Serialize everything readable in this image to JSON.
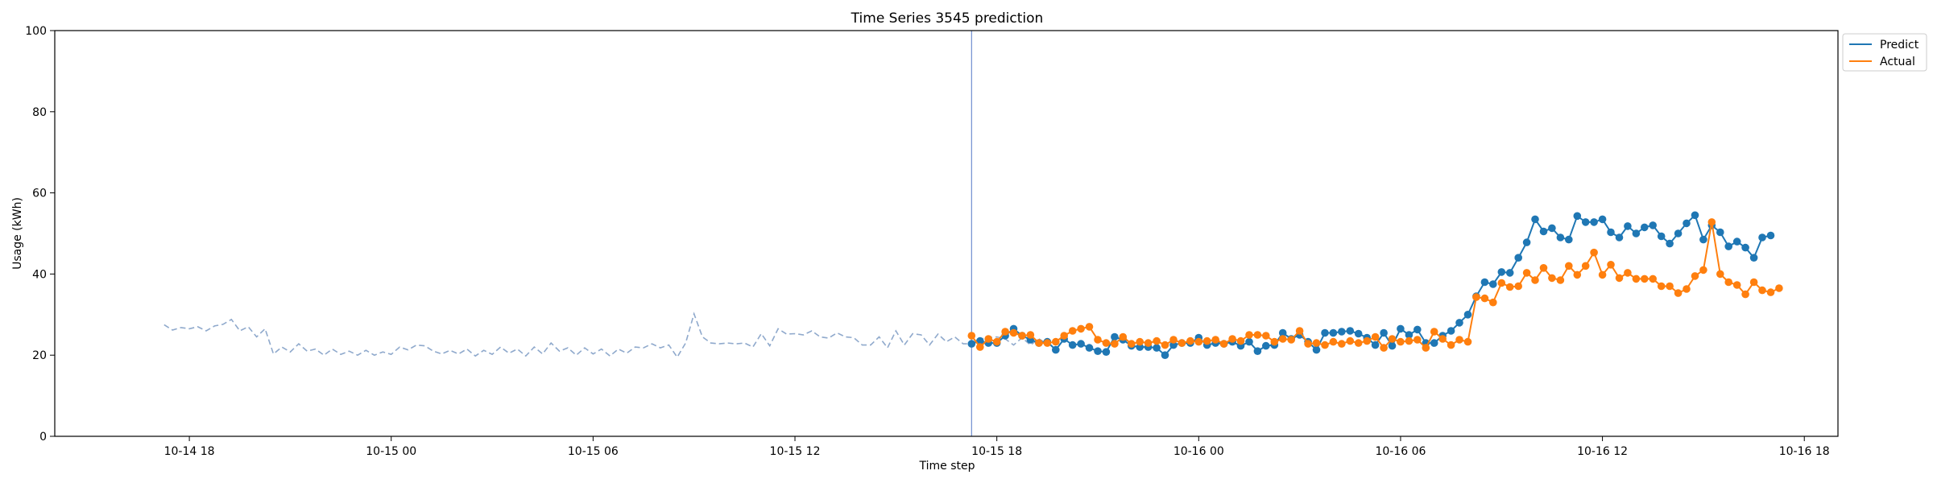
{
  "chart_data": {
    "type": "line",
    "title": "Time Series 3545 prediction",
    "xlabel": "Time step",
    "ylabel": "Usage (kWh)",
    "ylim": [
      0,
      100
    ],
    "yticks": [
      0,
      20,
      40,
      60,
      80,
      100
    ],
    "xlim": [
      "2024-10-14 14:00",
      "2024-10-16 19:00"
    ],
    "xticks": [
      {
        "t": "2024-10-14 18:00",
        "label": "10-14 18"
      },
      {
        "t": "2024-10-15 00:00",
        "label": "10-15 00"
      },
      {
        "t": "2024-10-15 06:00",
        "label": "10-15 06"
      },
      {
        "t": "2024-10-15 12:00",
        "label": "10-15 12"
      },
      {
        "t": "2024-10-15 18:00",
        "label": "10-15 18"
      },
      {
        "t": "2024-10-16 00:00",
        "label": "10-16 00"
      },
      {
        "t": "2024-10-16 06:00",
        "label": "10-16 06"
      },
      {
        "t": "2024-10-16 12:00",
        "label": "10-16 12"
      },
      {
        "t": "2024-10-16 18:00",
        "label": "10-16 18"
      }
    ],
    "forecast_start": "2024-10-15 17:15",
    "interval_minutes": 15,
    "history": {
      "start": "2024-10-14 17:15",
      "color": "#8fa9cc",
      "style": "dashed",
      "values": [
        27.5,
        26.2,
        26.8,
        26.5,
        27.0,
        26.0,
        27.2,
        27.6,
        28.8,
        26.0,
        27.0,
        24.5,
        26.5,
        20.3,
        22.0,
        20.8,
        22.8,
        21.0,
        21.5,
        20.0,
        21.5,
        20.2,
        21.0,
        20.0,
        21.2,
        20.0,
        20.8,
        20.2,
        22.0,
        21.3,
        22.5,
        22.3,
        21.0,
        20.3,
        21.2,
        20.3,
        21.5,
        19.8,
        21.2,
        20.2,
        22.0,
        20.5,
        21.5,
        19.8,
        22.0,
        20.3,
        23.0,
        21.0,
        21.8,
        20.0,
        21.8,
        20.3,
        21.5,
        19.8,
        21.5,
        20.5,
        22.0,
        21.8,
        22.8,
        21.8,
        22.5,
        19.5,
        23.0,
        30.2,
        24.5,
        23.0,
        22.8,
        23.0,
        22.8,
        23.0,
        22.0,
        25.3,
        22.3,
        26.5,
        25.2,
        25.3,
        25.0,
        26.0,
        24.5,
        24.2,
        25.5,
        24.5,
        24.3,
        22.5,
        22.5,
        24.5,
        21.8,
        26.0,
        22.5,
        25.3,
        25.0,
        22.5,
        25.2,
        23.3,
        24.5,
        22.8,
        22.8,
        24.0,
        24.3,
        24.5,
        24.0,
        22.5,
        24.3,
        22.5,
        24.0,
        22.8,
        23.5
      ]
    },
    "series": [
      {
        "name": "Predict",
        "color": "#1f77b4",
        "start": "2024-10-15 17:15",
        "values": [
          22.8,
          23.5,
          23.0,
          23.0,
          24.8,
          26.5,
          24.8,
          23.8,
          23.0,
          23.3,
          21.3,
          24.0,
          22.5,
          22.8,
          21.8,
          21.0,
          20.8,
          24.5,
          23.8,
          22.3,
          22.0,
          22.0,
          21.8,
          20.0,
          22.5,
          23.0,
          23.0,
          24.3,
          22.5,
          23.0,
          22.8,
          23.3,
          22.3,
          23.3,
          21.0,
          22.3,
          22.5,
          25.5,
          24.0,
          25.0,
          23.3,
          21.3,
          25.5,
          25.5,
          25.8,
          26.0,
          25.3,
          24.3,
          22.5,
          25.5,
          22.3,
          26.5,
          25.0,
          26.3,
          23.0,
          23.0,
          24.8,
          26.0,
          28.0,
          30.0,
          34.5,
          38.0,
          37.5,
          40.5,
          40.3,
          44.0,
          47.8,
          53.5,
          50.5,
          51.3,
          49.0,
          48.5,
          54.3,
          52.8,
          52.8,
          53.5,
          50.3,
          49.0,
          51.8,
          50.0,
          51.5,
          52.0,
          49.3,
          47.5,
          50.0,
          52.5,
          54.5,
          48.5,
          52.0,
          50.3,
          46.8,
          48.0,
          46.5,
          44.0,
          49.0,
          49.5
        ]
      },
      {
        "name": "Actual",
        "color": "#ff7f0e",
        "start": "2024-10-15 17:15",
        "values": [
          24.8,
          22.0,
          24.0,
          23.3,
          25.8,
          25.5,
          24.8,
          25.0,
          23.0,
          23.0,
          23.3,
          24.8,
          26.0,
          26.5,
          27.0,
          23.8,
          23.0,
          22.8,
          24.5,
          22.8,
          23.3,
          23.0,
          23.5,
          22.5,
          23.8,
          23.0,
          23.5,
          23.3,
          23.5,
          23.8,
          22.8,
          24.0,
          23.5,
          25.0,
          25.0,
          24.8,
          23.3,
          24.0,
          23.8,
          26.0,
          22.8,
          23.0,
          22.5,
          23.3,
          22.8,
          23.5,
          23.0,
          23.5,
          24.5,
          21.8,
          24.0,
          23.3,
          23.5,
          23.8,
          21.8,
          25.8,
          24.0,
          22.5,
          23.8,
          23.3,
          34.3,
          34.0,
          33.0,
          37.8,
          36.8,
          37.0,
          40.3,
          38.5,
          41.5,
          39.0,
          38.5,
          42.0,
          39.8,
          42.0,
          45.3,
          39.8,
          42.3,
          39.0,
          40.3,
          38.8,
          38.8,
          38.8,
          37.0,
          37.0,
          35.3,
          36.3,
          39.5,
          41.0,
          52.8,
          40.0,
          38.0,
          37.3,
          35.0,
          38.0,
          36.0,
          35.5,
          36.5
        ]
      }
    ],
    "legend": {
      "placement": "upper-right, outside",
      "entries": [
        "Predict",
        "Actual"
      ]
    },
    "grid": false
  }
}
